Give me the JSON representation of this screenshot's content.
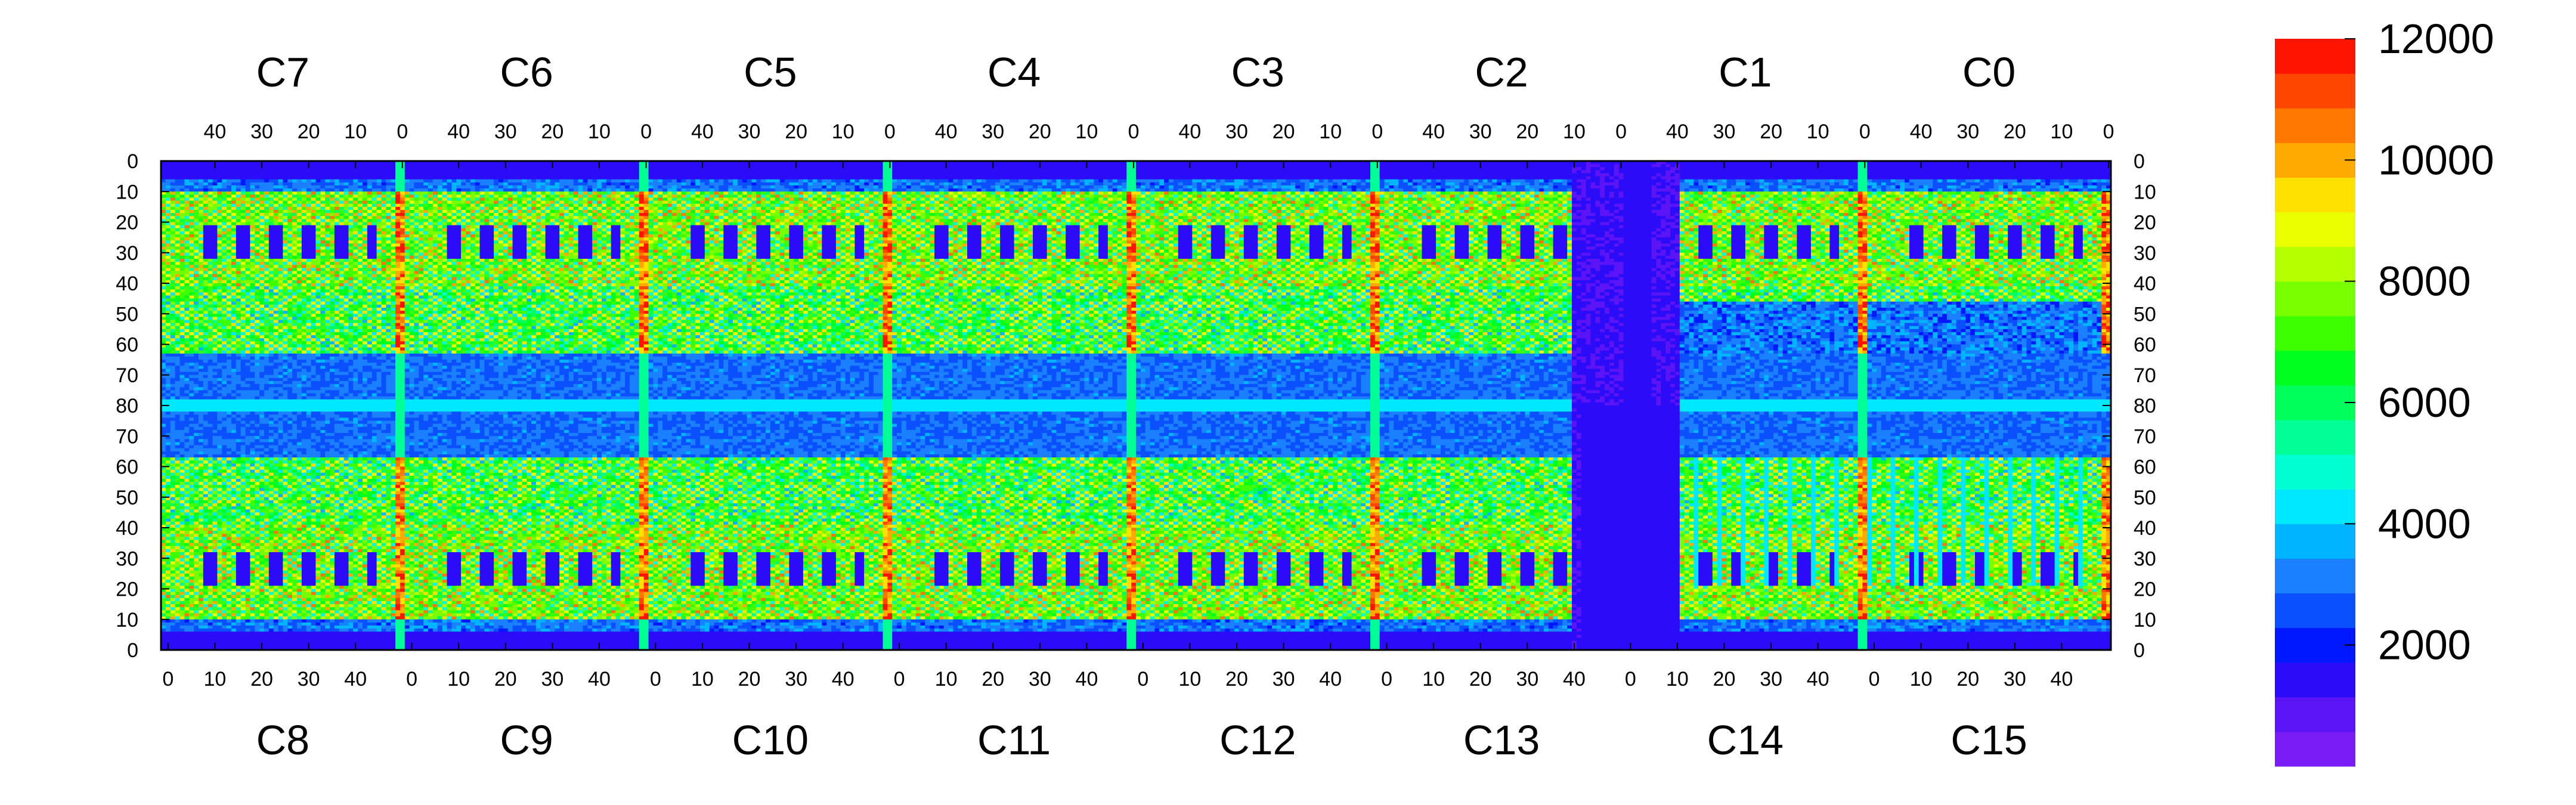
{
  "chart_data": {
    "type": "heatmap",
    "title": "",
    "colorbar": {
      "min": 0,
      "max": 12000,
      "ticks": [
        2000,
        4000,
        6000,
        8000,
        10000,
        12000
      ],
      "tick_labels": [
        "2000",
        "4000",
        "6000",
        "8000",
        "10000",
        "12000"
      ],
      "colors": [
        "#7a1cf5",
        "#5a14f5",
        "#2c0cf8",
        "#0018ff",
        "#0a50ff",
        "#1a80ff",
        "#00b4ff",
        "#00e8ff",
        "#00ffd2",
        "#00ff96",
        "#00ff5a",
        "#00ff1e",
        "#3cff00",
        "#78ff00",
        "#b4ff00",
        "#eaff00",
        "#ffe100",
        "#ffaa00",
        "#ff7800",
        "#ff4600",
        "#ff1400"
      ]
    },
    "top_chip_labels": [
      "C7",
      "C6",
      "C5",
      "C4",
      "C3",
      "C2",
      "C1",
      "C0"
    ],
    "bottom_chip_labels": [
      "C8",
      "C9",
      "C10",
      "C11",
      "C12",
      "C13",
      "C14",
      "C15"
    ],
    "top_x_tick_labels": [
      "40",
      "30",
      "20",
      "10",
      "0"
    ],
    "bottom_x_tick_labels": [
      "0",
      "10",
      "20",
      "30",
      "40"
    ],
    "y_tick_labels": [
      "0",
      "10",
      "20",
      "30",
      "40",
      "50",
      "60",
      "70",
      "80",
      "70",
      "60",
      "50",
      "40",
      "30",
      "20",
      "10",
      "0"
    ],
    "chip_columns": 52,
    "rows": 160,
    "value_model": "approximate occupancy map per chip: low-occupancy blue background, green/cyan periodic patterns in upper and lower bands, hot red columns at chip edges, uniform low region for chips C13/C14"
  }
}
